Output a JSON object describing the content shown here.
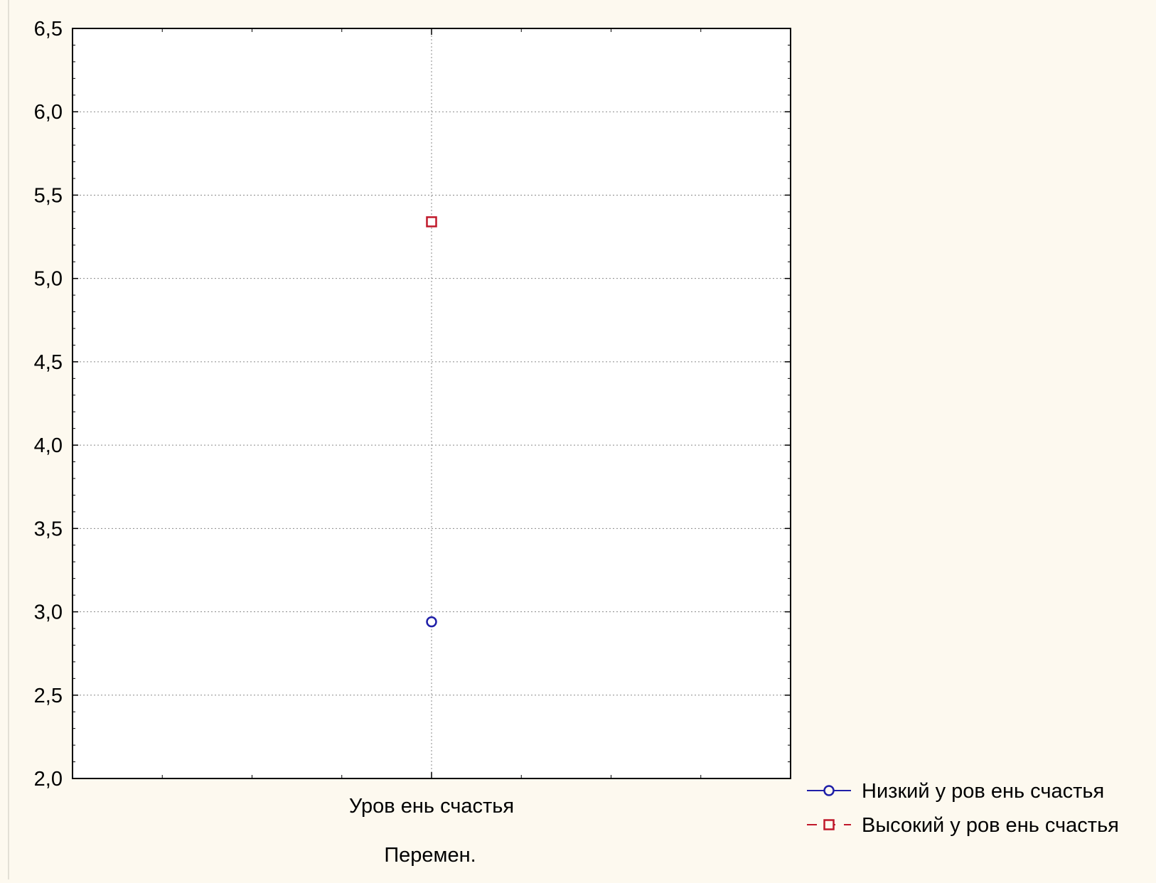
{
  "chart_data": {
    "type": "scatter",
    "categories": [
      "Уров ень счастья"
    ],
    "xlabel": "Перемен.",
    "ylabel": "",
    "ylim": [
      2.0,
      6.5
    ],
    "yticks": [
      "2,0",
      "2,5",
      "3,0",
      "3,5",
      "4,0",
      "4,5",
      "5,0",
      "5,5",
      "6,0",
      "6,5"
    ],
    "grid": true,
    "legend_position": "bottom-right",
    "series": [
      {
        "name": "Низкий у ров ень счастья",
        "values": [
          2.94
        ],
        "color": "#1f1fa8",
        "marker": "circle",
        "line": "solid"
      },
      {
        "name": "Высокий у ров ень счастья",
        "values": [
          5.34
        ],
        "color": "#c0182a",
        "marker": "square",
        "line": "dashed"
      }
    ]
  }
}
